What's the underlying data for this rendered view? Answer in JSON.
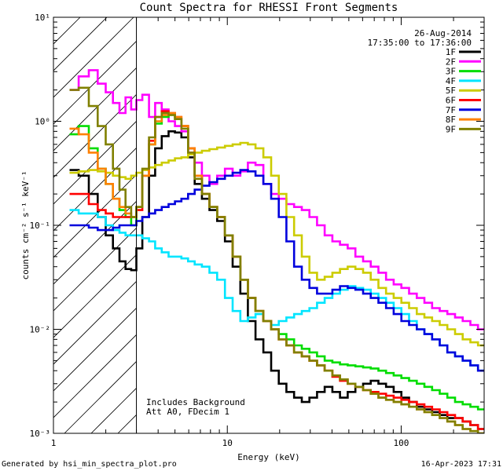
{
  "chart_data": {
    "type": "line",
    "title": "Count Spectra for RHESSI Front Segments",
    "xlabel": "Energy (keV)",
    "ylabel": "counts cm⁻² s⁻¹ keV⁻¹",
    "xscale": "log",
    "yscale": "log",
    "xlim": [
      1,
      300
    ],
    "ylim": [
      0.001,
      10
    ],
    "x_ticks": [
      {
        "value": 1,
        "label": "1"
      },
      {
        "value": 10,
        "label": "10"
      },
      {
        "value": 100,
        "label": "100"
      }
    ],
    "y_ticks": [
      {
        "value": 10,
        "label": "10¹"
      },
      {
        "value": 1,
        "label": "10⁰"
      },
      {
        "value": 0.1,
        "label": "10⁻¹"
      },
      {
        "value": 0.01,
        "label": "10⁻²"
      },
      {
        "value": 0.001,
        "label": "10⁻³"
      }
    ],
    "legend_position": "top-right",
    "date": "26-Aug-2014",
    "time_range": "17:35:00 to 17:36:00",
    "hatched_region_x": [
      1,
      3
    ],
    "annotations": [
      "Includes Background",
      "Att A0, FDecim 1"
    ],
    "series": [
      {
        "name": "1F",
        "color": "#000000",
        "x": [
          1.3,
          1.5,
          1.7,
          1.9,
          2.1,
          2.3,
          2.5,
          2.7,
          2.9,
          3.1,
          3.4,
          3.7,
          4.0,
          4.4,
          4.8,
          5.2,
          5.7,
          6.2,
          6.8,
          7.5,
          8.3,
          9.2,
          10.2,
          11.3,
          12.5,
          13.8,
          15.3,
          17.0,
          18.8,
          20.8,
          23.0,
          25.5,
          28.2,
          31.2,
          34.5,
          38.2,
          42.3,
          46.8,
          51.8,
          57.4,
          63.5,
          70.3,
          77.8,
          86.1,
          95.3,
          105.5,
          116.8,
          129.3,
          143.1,
          158.4,
          175.3,
          194.0,
          214.7,
          237.6,
          263.0,
          291.0
        ],
        "y": [
          0.34,
          0.3,
          0.2,
          0.12,
          0.08,
          0.06,
          0.045,
          0.038,
          0.037,
          0.06,
          0.12,
          0.3,
          0.55,
          0.72,
          0.8,
          0.78,
          0.7,
          0.45,
          0.25,
          0.18,
          0.14,
          0.11,
          0.07,
          0.04,
          0.022,
          0.012,
          0.008,
          0.006,
          0.004,
          0.003,
          0.0025,
          0.0022,
          0.002,
          0.0022,
          0.0025,
          0.0028,
          0.0025,
          0.0022,
          0.0025,
          0.0028,
          0.003,
          0.0032,
          0.003,
          0.0028,
          0.0025,
          0.0022,
          0.002,
          0.0018,
          0.0017,
          0.0016,
          0.0015,
          0.0014,
          0.0014,
          0.0013,
          0.0012,
          0.0011
        ]
      },
      {
        "name": "2F",
        "color": "#ff00ff",
        "x": [
          1.3,
          1.5,
          1.7,
          1.9,
          2.1,
          2.3,
          2.5,
          2.7,
          2.9,
          3.1,
          3.4,
          3.7,
          4.0,
          4.4,
          4.8,
          5.2,
          5.7,
          6.2,
          6.8,
          7.5,
          8.3,
          9.2,
          10.2,
          11.3,
          12.5,
          13.8,
          15.3,
          17.0,
          18.8,
          20.8,
          23.0,
          25.5,
          28.2,
          31.2,
          34.5,
          38.2,
          42.3,
          46.8,
          51.8,
          57.4,
          63.5,
          70.3,
          77.8,
          86.1,
          95.3,
          105.5,
          116.8,
          129.3,
          143.1,
          158.4,
          175.3,
          194.0,
          214.7,
          237.6,
          263.0,
          291.0
        ],
        "y": [
          2.0,
          2.7,
          3.1,
          2.3,
          1.9,
          1.5,
          1.2,
          1.7,
          1.3,
          1.6,
          1.8,
          1.1,
          1.5,
          1.3,
          1.0,
          0.9,
          0.8,
          0.5,
          0.4,
          0.3,
          0.25,
          0.3,
          0.35,
          0.3,
          0.33,
          0.4,
          0.38,
          0.25,
          0.2,
          0.18,
          0.16,
          0.15,
          0.14,
          0.12,
          0.1,
          0.08,
          0.07,
          0.065,
          0.06,
          0.05,
          0.045,
          0.04,
          0.035,
          0.03,
          0.027,
          0.025,
          0.022,
          0.02,
          0.018,
          0.016,
          0.015,
          0.014,
          0.013,
          0.012,
          0.011,
          0.01
        ]
      },
      {
        "name": "3F",
        "color": "#00dd00",
        "x": [
          1.3,
          1.5,
          1.7,
          1.9,
          2.1,
          2.3,
          2.5,
          2.7,
          2.9,
          3.1,
          3.4,
          3.7,
          4.0,
          4.4,
          4.8,
          5.2,
          5.7,
          6.2,
          6.8,
          7.5,
          8.3,
          9.2,
          10.2,
          11.3,
          12.5,
          13.8,
          15.3,
          17.0,
          18.8,
          20.8,
          23.0,
          25.5,
          28.2,
          31.2,
          34.5,
          38.2,
          42.3,
          46.8,
          51.8,
          57.4,
          63.5,
          70.3,
          77.8,
          86.1,
          95.3,
          105.5,
          116.8,
          129.3,
          143.1,
          158.4,
          175.3,
          194.0,
          214.7,
          237.6,
          263.0,
          291.0
        ],
        "y": [
          0.75,
          0.9,
          0.55,
          0.35,
          0.25,
          0.18,
          0.14,
          0.12,
          0.1,
          0.15,
          0.3,
          0.6,
          0.95,
          1.1,
          1.15,
          1.05,
          0.9,
          0.55,
          0.3,
          0.2,
          0.15,
          0.12,
          0.08,
          0.05,
          0.03,
          0.02,
          0.015,
          0.012,
          0.01,
          0.009,
          0.008,
          0.007,
          0.0065,
          0.006,
          0.0055,
          0.005,
          0.0048,
          0.0046,
          0.0045,
          0.0044,
          0.0043,
          0.0042,
          0.004,
          0.0038,
          0.0036,
          0.0034,
          0.0032,
          0.003,
          0.0028,
          0.0026,
          0.0024,
          0.0022,
          0.002,
          0.0019,
          0.0018,
          0.0017
        ]
      },
      {
        "name": "4F",
        "color": "#00e5ff",
        "x": [
          1.3,
          1.5,
          1.7,
          1.9,
          2.1,
          2.3,
          2.5,
          2.7,
          2.9,
          3.1,
          3.4,
          3.7,
          4.0,
          4.4,
          4.8,
          5.2,
          5.7,
          6.2,
          6.8,
          7.5,
          8.3,
          9.2,
          10.2,
          11.3,
          12.5,
          13.8,
          15.3,
          17.0,
          18.8,
          20.8,
          23.0,
          25.5,
          28.2,
          31.2,
          34.5,
          38.2,
          42.3,
          46.8,
          51.8,
          57.4,
          63.5,
          70.3,
          77.8,
          86.1,
          95.3,
          105.5,
          116.8,
          129.3,
          143.1,
          158.4,
          175.3,
          194.0,
          214.7,
          237.6,
          263.0,
          291.0
        ],
        "y": [
          0.14,
          0.13,
          0.13,
          0.12,
          0.1,
          0.09,
          0.085,
          0.08,
          0.08,
          0.08,
          0.075,
          0.07,
          0.06,
          0.055,
          0.05,
          0.05,
          0.048,
          0.045,
          0.042,
          0.04,
          0.035,
          0.03,
          0.02,
          0.015,
          0.012,
          0.013,
          0.014,
          0.012,
          0.011,
          0.012,
          0.013,
          0.014,
          0.015,
          0.016,
          0.018,
          0.02,
          0.022,
          0.024,
          0.026,
          0.025,
          0.024,
          0.022,
          0.02,
          0.018,
          0.016,
          0.014,
          0.012,
          0.01,
          0.009,
          0.008,
          0.007,
          0.006,
          0.0055,
          0.005,
          0.0045,
          0.004
        ]
      },
      {
        "name": "5F",
        "color": "#cccc00",
        "x": [
          1.3,
          1.5,
          1.7,
          1.9,
          2.1,
          2.3,
          2.5,
          2.7,
          2.9,
          3.1,
          3.4,
          3.7,
          4.0,
          4.4,
          4.8,
          5.2,
          5.7,
          6.2,
          6.8,
          7.5,
          8.3,
          9.2,
          10.2,
          11.3,
          12.5,
          13.8,
          15.3,
          17.0,
          18.8,
          20.8,
          23.0,
          25.5,
          28.2,
          31.2,
          34.5,
          38.2,
          42.3,
          46.8,
          51.8,
          57.4,
          63.5,
          70.3,
          77.8,
          86.1,
          95.3,
          105.5,
          116.8,
          129.3,
          143.1,
          158.4,
          175.3,
          194.0,
          214.7,
          237.6,
          263.0,
          291.0
        ],
        "y": [
          0.32,
          0.33,
          0.34,
          0.33,
          0.32,
          0.3,
          0.29,
          0.28,
          0.3,
          0.32,
          0.34,
          0.36,
          0.38,
          0.4,
          0.42,
          0.44,
          0.45,
          0.48,
          0.5,
          0.52,
          0.54,
          0.56,
          0.58,
          0.6,
          0.62,
          0.6,
          0.55,
          0.45,
          0.3,
          0.2,
          0.12,
          0.08,
          0.05,
          0.035,
          0.03,
          0.032,
          0.035,
          0.038,
          0.04,
          0.038,
          0.035,
          0.03,
          0.025,
          0.022,
          0.02,
          0.018,
          0.016,
          0.014,
          0.013,
          0.012,
          0.011,
          0.01,
          0.009,
          0.008,
          0.0075,
          0.007
        ]
      },
      {
        "name": "6F",
        "color": "#ff0000",
        "x": [
          1.3,
          1.5,
          1.7,
          1.9,
          2.1,
          2.3,
          2.5,
          2.7,
          2.9,
          3.1,
          3.4,
          3.7,
          4.0,
          4.4,
          4.8,
          5.2,
          5.7,
          6.2,
          6.8,
          7.5,
          8.3,
          9.2,
          10.2,
          11.3,
          12.5,
          13.8,
          15.3,
          17.0,
          18.8,
          20.8,
          23.0,
          25.5,
          28.2,
          31.2,
          34.5,
          38.2,
          42.3,
          46.8,
          51.8,
          57.4,
          63.5,
          70.3,
          77.8,
          86.1,
          95.3,
          105.5,
          116.8,
          129.3,
          143.1,
          158.4,
          175.3,
          194.0,
          214.7,
          237.6,
          263.0,
          291.0
        ],
        "y": [
          0.2,
          0.2,
          0.16,
          0.14,
          0.13,
          0.12,
          0.12,
          0.12,
          0.12,
          0.14,
          0.3,
          0.65,
          1.1,
          1.25,
          1.2,
          1.1,
          0.9,
          0.55,
          0.3,
          0.2,
          0.15,
          0.12,
          0.08,
          0.05,
          0.03,
          0.02,
          0.015,
          0.012,
          0.01,
          0.008,
          0.007,
          0.006,
          0.0055,
          0.005,
          0.0045,
          0.004,
          0.0035,
          0.0032,
          0.003,
          0.0028,
          0.0026,
          0.0025,
          0.0024,
          0.0023,
          0.0022,
          0.0021,
          0.002,
          0.0019,
          0.0018,
          0.0017,
          0.0016,
          0.0015,
          0.0014,
          0.0013,
          0.0012,
          0.0011
        ]
      },
      {
        "name": "7F",
        "color": "#0000dd",
        "x": [
          1.3,
          1.5,
          1.7,
          1.9,
          2.1,
          2.3,
          2.5,
          2.7,
          2.9,
          3.1,
          3.4,
          3.7,
          4.0,
          4.4,
          4.8,
          5.2,
          5.7,
          6.2,
          6.8,
          7.5,
          8.3,
          9.2,
          10.2,
          11.3,
          12.5,
          13.8,
          15.3,
          17.0,
          18.8,
          20.8,
          23.0,
          25.5,
          28.2,
          31.2,
          34.5,
          38.2,
          42.3,
          46.8,
          51.8,
          57.4,
          63.5,
          70.3,
          77.8,
          86.1,
          95.3,
          105.5,
          116.8,
          129.3,
          143.1,
          158.4,
          175.3,
          194.0,
          214.7,
          237.6,
          263.0,
          291.0
        ],
        "y": [
          0.1,
          0.1,
          0.095,
          0.09,
          0.09,
          0.095,
          0.1,
          0.1,
          0.1,
          0.11,
          0.12,
          0.13,
          0.14,
          0.15,
          0.16,
          0.17,
          0.18,
          0.2,
          0.22,
          0.24,
          0.26,
          0.28,
          0.3,
          0.32,
          0.34,
          0.33,
          0.3,
          0.25,
          0.18,
          0.12,
          0.07,
          0.04,
          0.03,
          0.025,
          0.022,
          0.022,
          0.024,
          0.026,
          0.025,
          0.024,
          0.022,
          0.02,
          0.018,
          0.016,
          0.014,
          0.012,
          0.011,
          0.01,
          0.009,
          0.008,
          0.007,
          0.006,
          0.0055,
          0.005,
          0.0045,
          0.004
        ]
      },
      {
        "name": "8F",
        "color": "#ff8000",
        "x": [
          1.3,
          1.5,
          1.7,
          1.9,
          2.1,
          2.3,
          2.5,
          2.7,
          2.9,
          3.1,
          3.4,
          3.7,
          4.0,
          4.4,
          4.8,
          5.2,
          5.7,
          6.2,
          6.8,
          7.5,
          8.3,
          9.2,
          10.2,
          11.3,
          12.5,
          13.8,
          15.3,
          17.0,
          18.8,
          20.8,
          23.0,
          25.5,
          28.2,
          31.2,
          34.5,
          38.2,
          42.3,
          46.8,
          51.8,
          57.4,
          63.5,
          70.3,
          77.8,
          86.1,
          95.3,
          105.5,
          116.8,
          129.3,
          143.1,
          158.4,
          175.3,
          194.0,
          214.7,
          237.6,
          263.0,
          291.0
        ],
        "y": [
          0.85,
          0.75,
          0.5,
          0.35,
          0.25,
          0.18,
          0.15,
          0.13,
          0.12,
          0.15,
          0.3,
          0.6,
          1.0,
          1.15,
          1.2,
          1.1,
          0.9,
          0.55,
          0.3,
          0.2,
          0.15,
          0.12,
          0.08,
          0.05,
          0.03,
          0.02,
          0.015,
          0.012,
          0.01,
          0.008,
          0.007,
          0.006,
          0.0055,
          0.005,
          0.0045,
          0.004,
          0.0036,
          0.0033,
          0.003,
          0.0028,
          0.0026,
          0.0024,
          0.0022,
          0.0021,
          0.002,
          0.0019,
          0.0018,
          0.0017,
          0.0016,
          0.0015,
          0.0014,
          0.0013,
          0.0012,
          0.0011,
          0.00105,
          0.001
        ]
      },
      {
        "name": "9F",
        "color": "#808000",
        "x": [
          1.3,
          1.5,
          1.7,
          1.9,
          2.1,
          2.3,
          2.5,
          2.7,
          2.9,
          3.1,
          3.4,
          3.7,
          4.0,
          4.4,
          4.8,
          5.2,
          5.7,
          6.2,
          6.8,
          7.5,
          8.3,
          9.2,
          10.2,
          11.3,
          12.5,
          13.8,
          15.3,
          17.0,
          18.8,
          20.8,
          23.0,
          25.5,
          28.2,
          31.2,
          34.5,
          38.2,
          42.3,
          46.8,
          51.8,
          57.4,
          63.5,
          70.3,
          77.8,
          86.1,
          95.3,
          105.5,
          116.8,
          129.3,
          143.1,
          158.4,
          175.3,
          194.0,
          214.7,
          237.6,
          263.0,
          291.0
        ],
        "y": [
          2.0,
          2.1,
          1.4,
          0.9,
          0.6,
          0.35,
          0.22,
          0.15,
          0.12,
          0.15,
          0.35,
          0.7,
          1.1,
          1.2,
          1.15,
          1.05,
          0.85,
          0.5,
          0.28,
          0.2,
          0.15,
          0.12,
          0.08,
          0.05,
          0.03,
          0.02,
          0.015,
          0.012,
          0.01,
          0.008,
          0.007,
          0.006,
          0.0055,
          0.005,
          0.0045,
          0.004,
          0.0036,
          0.0033,
          0.003,
          0.0028,
          0.0026,
          0.0024,
          0.0022,
          0.0021,
          0.002,
          0.0019,
          0.0018,
          0.0017,
          0.0016,
          0.0015,
          0.0014,
          0.0013,
          0.0012,
          0.0011,
          0.00105,
          0.001
        ]
      }
    ]
  },
  "footer": {
    "generated_by": "Generated by hsi_min_spectra_plot.pro",
    "timestamp": "16-Apr-2023 17:31"
  }
}
